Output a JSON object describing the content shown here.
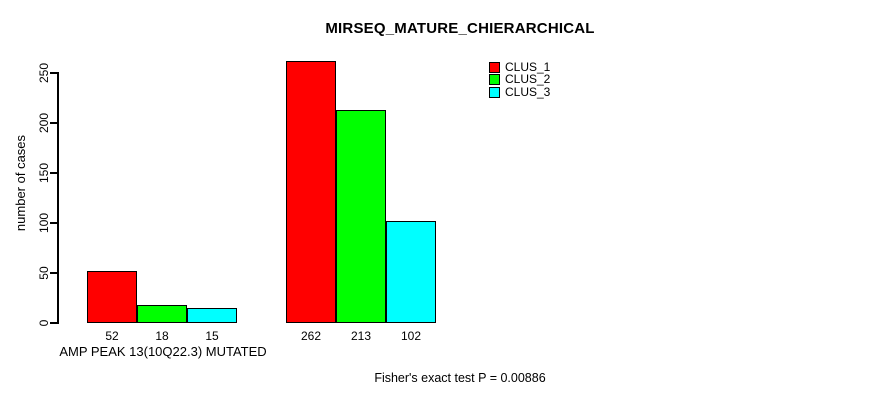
{
  "chart_data": {
    "type": "bar",
    "title": "MIRSEQ_MATURE_CHIERARCHICAL",
    "ylabel": "number of cases",
    "xlabel": "AMP PEAK 13(10Q22.3) MUTATED",
    "footnote": "Fisher's exact test P = 0.00886",
    "ylim": [
      0,
      250
    ],
    "yticks": [
      0,
      50,
      100,
      150,
      200,
      250
    ],
    "grid": false,
    "legend_position": "top-right",
    "groups": 2,
    "series": [
      {
        "name": "CLUS_1",
        "color": "#ff0000",
        "values": [
          52,
          262
        ]
      },
      {
        "name": "CLUS_2",
        "color": "#00ff00",
        "values": [
          18,
          213
        ]
      },
      {
        "name": "CLUS_3",
        "color": "#00ffff",
        "values": [
          15,
          102
        ]
      }
    ],
    "bar_border_color": "#000000",
    "background_color": "#ffffff"
  }
}
